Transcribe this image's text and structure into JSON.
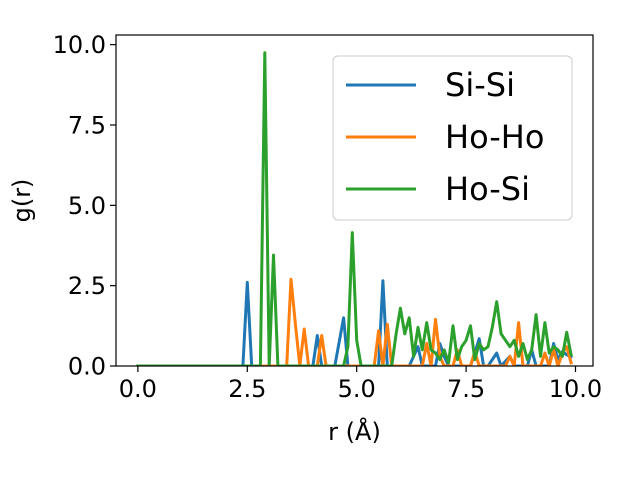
{
  "chart_data": {
    "type": "line",
    "xlabel": "r (Å)",
    "ylabel": "g(r)",
    "xlim": [
      -0.5,
      10.4
    ],
    "ylim": [
      0,
      10.3
    ],
    "xticks": [
      "0.0",
      "2.5",
      "5.0",
      "7.5",
      "10.0"
    ],
    "yticks": [
      "0.0",
      "2.5",
      "5.0",
      "7.5",
      "10.0"
    ],
    "xtick_values": [
      0,
      2.5,
      5,
      7.5,
      10
    ],
    "ytick_values": [
      0,
      2.5,
      5,
      7.5,
      10
    ],
    "grid": false,
    "legend_position": "upper-right",
    "series": [
      {
        "name": "Si-Si",
        "color": "#1f77b4",
        "points": [
          [
            0,
            0
          ],
          [
            2.4,
            0
          ],
          [
            2.5,
            2.6
          ],
          [
            2.6,
            0
          ],
          [
            4.0,
            0
          ],
          [
            4.1,
            0.95
          ],
          [
            4.2,
            0
          ],
          [
            4.5,
            0
          ],
          [
            4.7,
            1.5
          ],
          [
            4.8,
            0
          ],
          [
            5.5,
            0
          ],
          [
            5.6,
            2.65
          ],
          [
            5.7,
            0
          ],
          [
            6.2,
            0
          ],
          [
            6.4,
            0.6
          ],
          [
            6.5,
            0
          ],
          [
            6.8,
            0
          ],
          [
            6.9,
            0.7
          ],
          [
            7.0,
            0.3
          ],
          [
            7.1,
            0
          ],
          [
            7.6,
            0
          ],
          [
            7.7,
            0.4
          ],
          [
            7.8,
            0.85
          ],
          [
            7.9,
            0
          ],
          [
            8.0,
            0
          ],
          [
            8.2,
            0.4
          ],
          [
            8.3,
            0
          ],
          [
            8.5,
            0.3
          ],
          [
            8.6,
            0
          ],
          [
            8.9,
            0
          ],
          [
            9.0,
            0.5
          ],
          [
            9.1,
            0
          ],
          [
            9.4,
            0
          ],
          [
            9.5,
            0.7
          ],
          [
            9.6,
            0.2
          ],
          [
            9.7,
            0.45
          ],
          [
            9.8,
            0.35
          ],
          [
            9.9,
            0.3
          ]
        ]
      },
      {
        "name": "Ho-Ho",
        "color": "#ff7f0e",
        "points": [
          [
            0,
            0
          ],
          [
            3.4,
            0
          ],
          [
            3.5,
            2.7
          ],
          [
            3.6,
            1.3
          ],
          [
            3.7,
            0
          ],
          [
            3.8,
            1.15
          ],
          [
            3.9,
            0
          ],
          [
            4.1,
            0
          ],
          [
            4.2,
            0.95
          ],
          [
            4.3,
            0
          ],
          [
            5.4,
            0
          ],
          [
            5.5,
            1.1
          ],
          [
            5.6,
            0
          ],
          [
            5.7,
            1.3
          ],
          [
            5.8,
            0
          ],
          [
            6.5,
            0
          ],
          [
            6.6,
            0.7
          ],
          [
            6.7,
            0
          ],
          [
            6.8,
            1.45
          ],
          [
            6.9,
            0.3
          ],
          [
            7.0,
            0
          ],
          [
            7.2,
            0
          ],
          [
            7.3,
            0.5
          ],
          [
            7.4,
            0
          ],
          [
            7.6,
            0
          ],
          [
            7.7,
            0.45
          ],
          [
            7.8,
            0
          ],
          [
            8.4,
            0
          ],
          [
            8.5,
            0.3
          ],
          [
            8.6,
            0
          ],
          [
            8.7,
            1.35
          ],
          [
            8.8,
            0
          ],
          [
            9.2,
            0
          ],
          [
            9.3,
            0.4
          ],
          [
            9.4,
            0
          ],
          [
            9.5,
            0.5
          ],
          [
            9.6,
            0
          ],
          [
            9.7,
            0.4
          ],
          [
            9.8,
            0.6
          ],
          [
            9.9,
            0.1
          ]
        ]
      },
      {
        "name": "Ho-Si",
        "color": "#2ca02c",
        "points": [
          [
            0,
            0
          ],
          [
            2.8,
            0
          ],
          [
            2.9,
            9.75
          ],
          [
            3.0,
            0
          ],
          [
            3.1,
            3.45
          ],
          [
            3.2,
            0
          ],
          [
            4.7,
            0
          ],
          [
            4.8,
            0.6
          ],
          [
            4.9,
            4.15
          ],
          [
            5.0,
            0.8
          ],
          [
            5.1,
            0
          ],
          [
            5.8,
            0
          ],
          [
            5.9,
            1.0
          ],
          [
            6.0,
            1.8
          ],
          [
            6.1,
            1.0
          ],
          [
            6.2,
            1.5
          ],
          [
            6.3,
            0.3
          ],
          [
            6.4,
            1.2
          ],
          [
            6.5,
            0.5
          ],
          [
            6.6,
            1.35
          ],
          [
            6.7,
            0.5
          ],
          [
            6.8,
            0.4
          ],
          [
            6.9,
            0.2
          ],
          [
            7.0,
            0.5
          ],
          [
            7.1,
            0.1
          ],
          [
            7.2,
            1.25
          ],
          [
            7.3,
            0.2
          ],
          [
            7.4,
            0.6
          ],
          [
            7.5,
            0.8
          ],
          [
            7.6,
            1.25
          ],
          [
            7.7,
            0.2
          ],
          [
            7.8,
            0.7
          ],
          [
            7.9,
            0.5
          ],
          [
            8.0,
            0.6
          ],
          [
            8.1,
            1.2
          ],
          [
            8.2,
            2.0
          ],
          [
            8.3,
            1.0
          ],
          [
            8.4,
            0.8
          ],
          [
            8.5,
            0.6
          ],
          [
            8.6,
            0.8
          ],
          [
            8.7,
            0.3
          ],
          [
            8.8,
            0.7
          ],
          [
            8.9,
            0.2
          ],
          [
            9.0,
            0.5
          ],
          [
            9.1,
            1.6
          ],
          [
            9.2,
            0.3
          ],
          [
            9.3,
            1.35
          ],
          [
            9.4,
            0.4
          ],
          [
            9.5,
            0.6
          ],
          [
            9.6,
            0.5
          ],
          [
            9.7,
            0.3
          ],
          [
            9.8,
            1.05
          ],
          [
            9.9,
            0.35
          ]
        ]
      }
    ]
  }
}
